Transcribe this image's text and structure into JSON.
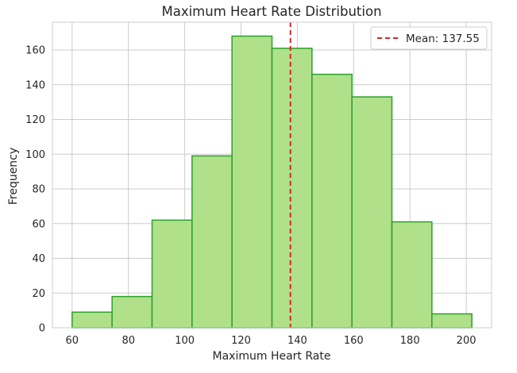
{
  "chart_data": {
    "type": "bar",
    "title": "Maximum Heart Rate Distribution",
    "xlabel": "Maximum Heart Rate",
    "ylabel": "Frequency",
    "xlim": [
      53,
      209
    ],
    "ylim": [
      0,
      176
    ],
    "xticks": [
      60,
      80,
      100,
      120,
      140,
      160,
      180,
      200
    ],
    "yticks": [
      0,
      20,
      40,
      60,
      80,
      100,
      120,
      140,
      160
    ],
    "bin_edges": [
      60,
      74.2,
      88.4,
      102.6,
      116.8,
      131,
      145.2,
      159.4,
      173.6,
      187.8,
      202
    ],
    "values": [
      9,
      18,
      62,
      99,
      168,
      161,
      146,
      133,
      61,
      8
    ],
    "mean": 137.55,
    "legend": {
      "label": "Mean: 137.55",
      "position": "upper right"
    },
    "grid": true,
    "colors": {
      "bar_fill": "#b0e08a",
      "bar_edge": "#2ca02c",
      "mean_line": "#d62728",
      "grid": "#cccccc"
    }
  }
}
